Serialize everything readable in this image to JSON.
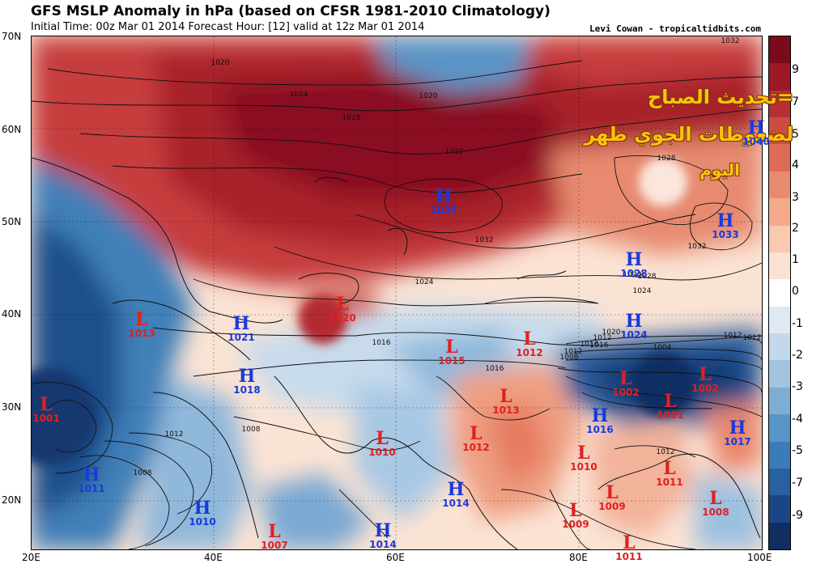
{
  "header": {
    "title": "GFS MSLP Anomaly in hPa (based on CFSR 1981-2010 Climatology)",
    "subtitle": "Initial Time: 00z Mar 01 2014 Forecast Hour: [12] valid at 12z Mar 01 2014",
    "credit": "Levi Cowan - tropicaltidbits.com"
  },
  "overlay_text": {
    "line1": "=تحديث الصباح",
    "line2": "لضغوطات الجوي ظهر",
    "line3": "اليوم"
  },
  "axes": {
    "lat": [
      "70N",
      "60N",
      "50N",
      "40N",
      "30N",
      "20N"
    ],
    "lon": [
      "20E",
      "40E",
      "60E",
      "80E",
      "100E"
    ]
  },
  "colorbar": {
    "labels": [
      "9",
      "7",
      "5",
      "4",
      "3",
      "2",
      "1",
      "0",
      "-1",
      "-2",
      "-3",
      "-4",
      "-5",
      "-7",
      "-9"
    ],
    "colors": [
      "#7a0b1c",
      "#9d1927",
      "#b72f34",
      "#cc4c43",
      "#de6b57",
      "#ea8a6e",
      "#f4aa8b",
      "#fac9b0",
      "#fce2d2",
      "#ffffff",
      "#dfe9f2",
      "#c3d8ea",
      "#a2c4e0",
      "#7eadd4",
      "#5994c6",
      "#3b7bb6",
      "#2860a0",
      "#1b4685",
      "#0f2f63"
    ]
  },
  "isobar_labels": [
    "1032",
    "1020",
    "1024",
    "1020",
    "1028",
    "1032",
    "1032",
    "1024",
    "1020",
    "1016",
    "1016",
    "1012",
    "1016",
    "1012",
    "1008",
    "1020",
    "1016",
    "1012",
    "1028",
    "1024",
    "1028",
    "1032",
    "1004",
    "1012",
    "1008",
    "1012",
    "1008",
    "1012"
  ],
  "systems": [
    {
      "type": "H",
      "value": "1040"
    },
    {
      "type": "H",
      "value": "1035"
    },
    {
      "type": "H",
      "value": "1033"
    },
    {
      "type": "H",
      "value": "1028"
    },
    {
      "type": "H",
      "value": "1024"
    },
    {
      "type": "L",
      "value": "1020"
    },
    {
      "type": "L",
      "value": "1013"
    },
    {
      "type": "H",
      "value": "1021"
    },
    {
      "type": "L",
      "value": "1015"
    },
    {
      "type": "L",
      "value": "1012"
    },
    {
      "type": "L",
      "value": "1002"
    },
    {
      "type": "L",
      "value": "1002"
    },
    {
      "type": "L",
      "value": "1001"
    },
    {
      "type": "H",
      "value": "1018"
    },
    {
      "type": "L",
      "value": "1013"
    },
    {
      "type": "L",
      "value": "1001"
    },
    {
      "type": "H",
      "value": "1016"
    },
    {
      "type": "H",
      "value": "1017"
    },
    {
      "type": "L",
      "value": "1010"
    },
    {
      "type": "L",
      "value": "1012"
    },
    {
      "type": "L",
      "value": "1010"
    },
    {
      "type": "L",
      "value": "1011"
    },
    {
      "type": "H",
      "value": "1011"
    },
    {
      "type": "H",
      "value": "1014"
    },
    {
      "type": "L",
      "value": "1009"
    },
    {
      "type": "L",
      "value": "1008"
    },
    {
      "type": "L",
      "value": "1009"
    },
    {
      "type": "H",
      "value": "1010"
    },
    {
      "type": "L",
      "value": "1007"
    },
    {
      "type": "H",
      "value": "1014"
    },
    {
      "type": "L",
      "value": "1011"
    }
  ],
  "palette": {
    "high": "#1a3ad8",
    "low": "#e02020",
    "overlay": "#ffc20e"
  }
}
